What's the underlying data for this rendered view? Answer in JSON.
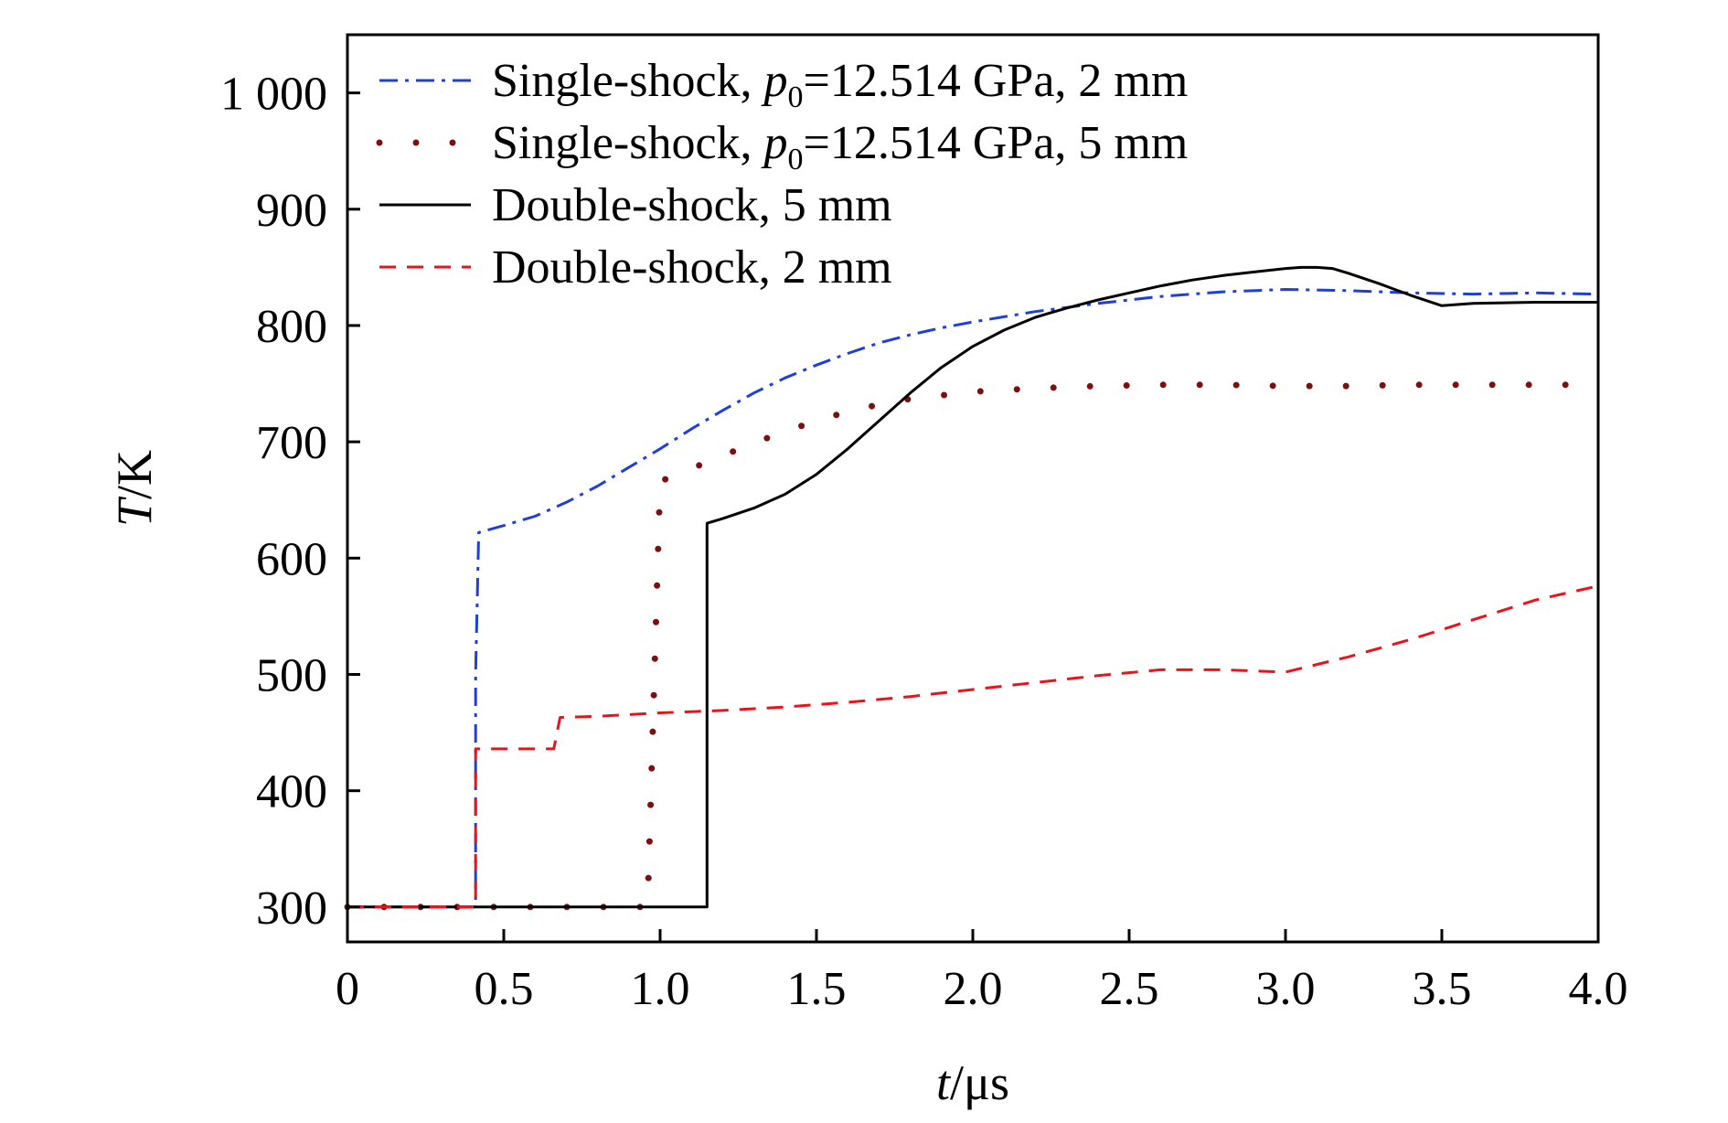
{
  "chart_data": {
    "type": "line",
    "xlabel_var": "t",
    "xlabel_unit": "/μs",
    "ylabel_var": "T",
    "ylabel_unit": "/K",
    "xlim": [
      0,
      4.0
    ],
    "ylim": [
      270,
      1050
    ],
    "x_ticks": [
      0,
      0.5,
      1.0,
      1.5,
      2.0,
      2.5,
      3.0,
      3.5,
      4.0
    ],
    "x_tick_labels": [
      "0",
      "0.5",
      "1.0",
      "1.5",
      "2.0",
      "2.5",
      "3.0",
      "3.5",
      "4.0"
    ],
    "y_ticks": [
      300,
      400,
      500,
      600,
      700,
      800,
      900,
      1000
    ],
    "y_tick_labels": [
      "300",
      "400",
      "500",
      "600",
      "700",
      "800",
      "900",
      "1 000"
    ],
    "grid": false,
    "legend_position": "top-left",
    "series": [
      {
        "name": "Single-shock, p0=12.514 GPa, 2 mm",
        "legend_prefix": "Single-shock, ",
        "legend_var": "p",
        "legend_sub": "0",
        "legend_suffix": "=12.514 GPa, 2 mm",
        "color": "#1f3fd6",
        "style": "dashdot",
        "x": [
          0,
          0.41,
          0.41,
          0.42,
          0.5,
          0.6,
          0.7,
          0.8,
          0.9,
          1.0,
          1.1,
          1.2,
          1.3,
          1.4,
          1.5,
          1.6,
          1.7,
          1.8,
          1.9,
          2.0,
          2.2,
          2.4,
          2.6,
          2.8,
          3.0,
          3.2,
          3.4,
          3.6,
          3.8,
          4.0
        ],
        "y": [
          300,
          300,
          500,
          622,
          628,
          636,
          648,
          662,
          678,
          694,
          711,
          727,
          742,
          755,
          766,
          776,
          785,
          792,
          798,
          803,
          812,
          819,
          825,
          829,
          831,
          830,
          828,
          827,
          828,
          827
        ]
      },
      {
        "name": "Single-shock, p0=12.514 GPa, 5 mm",
        "legend_prefix": "Single-shock, ",
        "legend_var": "p",
        "legend_sub": "0",
        "legend_suffix": "=12.514 GPa, 5 mm",
        "color": "#7a1010",
        "style": "dotted",
        "x": [
          0,
          0.96,
          0.96,
          1.0,
          1.1,
          1.2,
          1.3,
          1.4,
          1.5,
          1.6,
          1.7,
          1.8,
          1.9,
          2.0,
          2.2,
          2.4,
          2.6,
          2.8,
          3.0,
          3.2,
          3.4,
          3.6,
          3.8,
          4.0
        ],
        "y": [
          300,
          300,
          300,
          666,
          677,
          688,
          699,
          709,
          718,
          726,
          732,
          737,
          740,
          743,
          746,
          748,
          749,
          749,
          748,
          748,
          749,
          749,
          749,
          749
        ]
      },
      {
        "name": "Double-shock, 5 mm",
        "color": "#000000",
        "style": "solid",
        "x": [
          0,
          1.15,
          1.15,
          1.2,
          1.3,
          1.4,
          1.5,
          1.6,
          1.7,
          1.8,
          1.9,
          2.0,
          2.1,
          2.2,
          2.3,
          2.4,
          2.5,
          2.6,
          2.7,
          2.8,
          2.9,
          3.0,
          3.05,
          3.1,
          3.15,
          3.2,
          3.3,
          3.4,
          3.5,
          3.6,
          3.8,
          4.0
        ],
        "y": [
          300,
          300,
          630,
          634,
          643,
          655,
          672,
          694,
          718,
          742,
          764,
          782,
          796,
          807,
          815,
          822,
          828,
          834,
          839,
          843,
          846,
          849,
          850,
          850,
          849,
          845,
          836,
          826,
          817,
          819,
          820,
          820
        ]
      },
      {
        "name": "Double-shock, 2 mm",
        "color": "#e8141c",
        "style": "dashed",
        "x": [
          0,
          0.41,
          0.41,
          0.66,
          0.68,
          0.8,
          1.0,
          1.2,
          1.4,
          1.6,
          1.8,
          2.0,
          2.2,
          2.4,
          2.6,
          2.8,
          3.0,
          3.2,
          3.4,
          3.6,
          3.8,
          4.0
        ],
        "y": [
          300,
          300,
          436,
          436,
          463,
          464,
          467,
          469,
          472,
          476,
          481,
          487,
          493,
          499,
          504,
          504,
          502,
          515,
          530,
          547,
          564,
          576
        ]
      }
    ]
  }
}
